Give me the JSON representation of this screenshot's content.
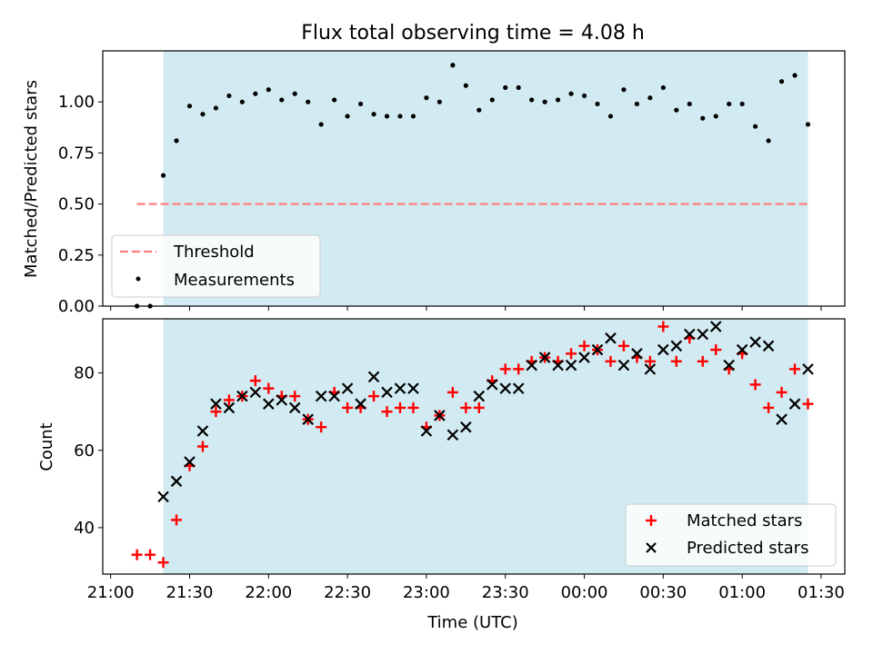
{
  "figure": {
    "title": "Flux total observing time = 4.08 h",
    "xlabel": "Time (UTC)",
    "x_ticks": [
      "21:00",
      "21:30",
      "22:00",
      "22:30",
      "23:00",
      "23:30",
      "00:00",
      "00:30",
      "01:00",
      "01:30"
    ],
    "x_tick_minutes": [
      1260,
      1290,
      1320,
      1350,
      1380,
      1410,
      1440,
      1470,
      1500,
      1530
    ],
    "observing_span_minutes": [
      1280,
      1525
    ],
    "colors": {
      "span": "#add8e6",
      "threshold": "#ff7f7f",
      "measurements": "#000000",
      "matched": "#ff0000",
      "predicted": "#000000"
    }
  },
  "chart_data": [
    {
      "type": "scatter",
      "ylabel": "Matched/Predicted stars",
      "xlim_minutes": [
        1257,
        1539
      ],
      "ylim": [
        0.0,
        1.25
      ],
      "y_ticks": [
        0.0,
        0.25,
        0.5,
        0.75,
        1.0
      ],
      "y_tick_labels": [
        "0.00",
        "0.25",
        "0.50",
        "0.75",
        "1.00"
      ],
      "legend": {
        "placement": "lower left",
        "threshold": "Threshold",
        "measurements": "Measurements"
      },
      "threshold": {
        "value": 0.5,
        "x_range_minutes": [
          1270,
          1525
        ]
      },
      "x_minutes": [
        1270,
        1275,
        1280,
        1285,
        1290,
        1295,
        1300,
        1305,
        1310,
        1315,
        1320,
        1325,
        1330,
        1335,
        1340,
        1345,
        1350,
        1355,
        1360,
        1365,
        1370,
        1375,
        1380,
        1385,
        1390,
        1395,
        1400,
        1405,
        1410,
        1415,
        1420,
        1425,
        1430,
        1435,
        1440,
        1445,
        1450,
        1455,
        1460,
        1465,
        1470,
        1475,
        1480,
        1485,
        1490,
        1495,
        1500,
        1505,
        1510,
        1515,
        1520,
        1525
      ],
      "values": [
        0.0,
        0.0,
        0.64,
        0.81,
        0.98,
        0.94,
        0.97,
        1.03,
        1.0,
        1.04,
        1.06,
        1.01,
        1.04,
        1.0,
        0.89,
        1.01,
        0.93,
        0.99,
        0.94,
        0.93,
        0.93,
        0.93,
        1.02,
        1.0,
        1.18,
        1.08,
        0.96,
        1.01,
        1.07,
        1.07,
        1.01,
        1.0,
        1.01,
        1.04,
        1.03,
        0.99,
        0.93,
        1.06,
        0.99,
        1.02,
        1.07,
        0.96,
        0.99,
        0.92,
        0.93,
        0.99,
        0.99,
        0.88,
        0.81,
        1.1,
        1.13,
        0.89
      ]
    },
    {
      "type": "scatter",
      "ylabel": "Count",
      "xlim_minutes": [
        1257,
        1539
      ],
      "ylim": [
        28,
        94
      ],
      "y_ticks": [
        40,
        60,
        80
      ],
      "y_tick_labels": [
        "40",
        "60",
        "80"
      ],
      "legend": {
        "placement": "lower right"
      },
      "x_minutes": [
        1270,
        1275,
        1280,
        1285,
        1290,
        1295,
        1300,
        1305,
        1310,
        1315,
        1320,
        1325,
        1330,
        1335,
        1340,
        1345,
        1350,
        1355,
        1360,
        1365,
        1370,
        1375,
        1380,
        1385,
        1390,
        1395,
        1400,
        1405,
        1410,
        1415,
        1420,
        1425,
        1430,
        1435,
        1440,
        1445,
        1450,
        1455,
        1460,
        1465,
        1470,
        1475,
        1480,
        1485,
        1490,
        1495,
        1500,
        1505,
        1510,
        1515,
        1520,
        1525
      ],
      "series": [
        {
          "name": "Matched stars",
          "marker": "+",
          "values": [
            33,
            33,
            31,
            42,
            56,
            61,
            70,
            73,
            74,
            78,
            76,
            74,
            74,
            68,
            66,
            75,
            71,
            71,
            74,
            70,
            71,
            71,
            66,
            69,
            75,
            71,
            71,
            78,
            81,
            81,
            83,
            84,
            83,
            85,
            87,
            86,
            83,
            87,
            84,
            83,
            92,
            83,
            89,
            83,
            86,
            81,
            85,
            77,
            71,
            75,
            81,
            72
          ]
        },
        {
          "name": "Predicted stars",
          "marker": "x",
          "start_index": 2,
          "values": [
            48,
            52,
            57,
            65,
            72,
            71,
            74,
            75,
            72,
            73,
            71,
            68,
            74,
            74,
            76,
            72,
            79,
            75,
            76,
            76,
            65,
            69,
            64,
            66,
            74,
            77,
            76,
            76,
            82,
            84,
            82,
            82,
            84,
            86,
            89,
            82,
            85,
            81,
            86,
            87,
            90,
            90,
            92,
            82,
            86,
            88,
            87,
            68,
            72,
            81
          ]
        }
      ]
    }
  ]
}
